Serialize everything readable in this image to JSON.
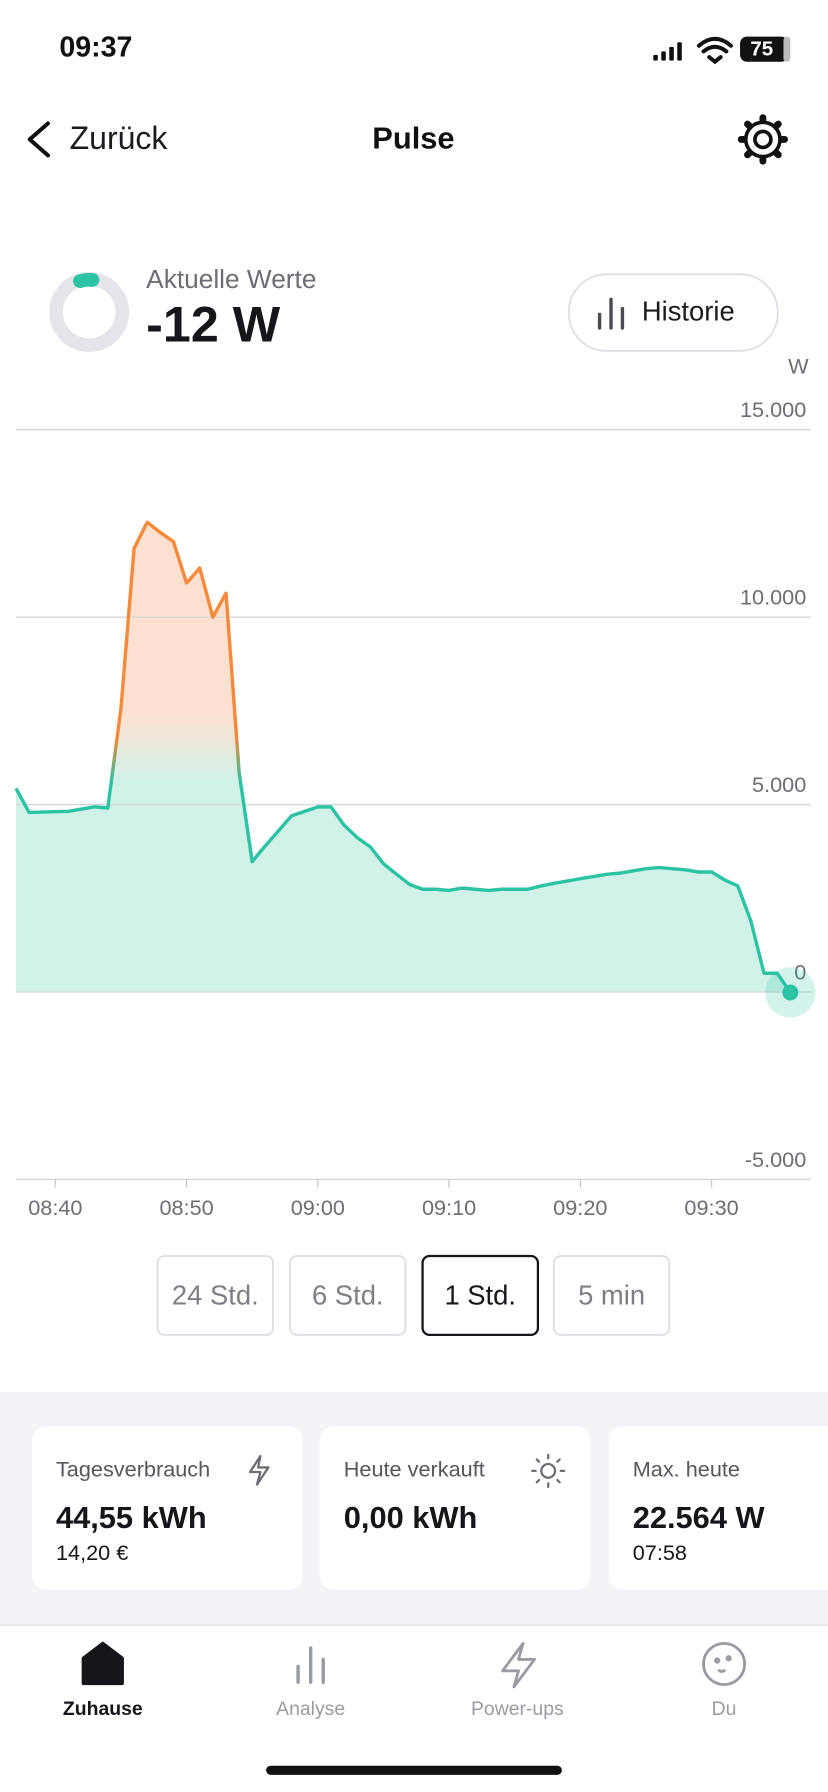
{
  "status_bar": {
    "time": "09:37",
    "battery": "75"
  },
  "nav": {
    "back": "Zurück",
    "title": "Pulse"
  },
  "current": {
    "label": "Aktuelle Werte",
    "value": "-12 W",
    "history_button": "Historie"
  },
  "chart_data": {
    "type": "line",
    "y_unit": "W",
    "color": "#2cc3a4",
    "peak_color": "#f58a3d",
    "x": [
      "08:37",
      "08:38",
      "08:41",
      "08:43",
      "08:44",
      "08:45",
      "08:46",
      "08:47",
      "08:48",
      "08:49",
      "08:50",
      "08:51",
      "08:52",
      "08:53",
      "08:54",
      "08:55",
      "08:56",
      "08:57",
      "08:58",
      "08:59",
      "09:00",
      "09:01",
      "09:02",
      "09:03",
      "09:04",
      "09:05",
      "09:06",
      "09:07",
      "09:08",
      "09:09",
      "09:10",
      "09:11",
      "09:12",
      "09:13",
      "09:14",
      "09:15",
      "09:16",
      "09:17",
      "09:18",
      "09:19",
      "09:20",
      "09:21",
      "09:22",
      "09:23",
      "09:24",
      "09:25",
      "09:26",
      "09:27",
      "09:28",
      "09:29",
      "09:30",
      "09:31",
      "09:32",
      "09:33",
      "09:34",
      "09:35",
      "09:36"
    ],
    "values": [
      5430,
      4790,
      4820,
      4940,
      4910,
      7560,
      11830,
      12530,
      12260,
      12010,
      10910,
      11310,
      10000,
      10640,
      5850,
      3480,
      3900,
      4300,
      4700,
      4820,
      4940,
      4940,
      4450,
      4120,
      3870,
      3420,
      3140,
      2870,
      2740,
      2740,
      2710,
      2770,
      2740,
      2710,
      2740,
      2740,
      2740,
      2830,
      2900,
      2960,
      3020,
      3080,
      3140,
      3170,
      3230,
      3290,
      3320,
      3290,
      3260,
      3200,
      3200,
      2990,
      2830,
      1890,
      500,
      500,
      -12
    ],
    "xlim": [
      "08:37",
      "09:36"
    ],
    "xticks": [
      "08:40",
      "08:50",
      "09:00",
      "09:10",
      "09:20",
      "09:30"
    ],
    "ylim": [
      -5000,
      15000
    ],
    "yticks": [
      {
        "value": -5000,
        "label": "-5.000"
      },
      0,
      {
        "value": 5000,
        "label": "5.000"
      },
      {
        "value": 10000,
        "label": "10.000"
      },
      {
        "value": 15000,
        "label": "15.000"
      }
    ],
    "grid": true
  },
  "ranges": [
    {
      "label": "24 Std.",
      "selected": false
    },
    {
      "label": "6 Std.",
      "selected": false
    },
    {
      "label": "1 Std.",
      "selected": true
    },
    {
      "label": "5 min",
      "selected": false
    }
  ],
  "cards": [
    {
      "title": "Tagesverbrauch",
      "value": "44,55 kWh",
      "sub": "14,20 €"
    },
    {
      "title": "Heute verkauft",
      "value": "0,00 kWh"
    },
    {
      "title": "Max. heute",
      "value": "22.564 W",
      "sub": "07:58"
    }
  ],
  "tabbar": [
    {
      "label": "Zuhause",
      "active": true
    },
    {
      "label": "Analyse",
      "active": false
    },
    {
      "label": "Power-ups",
      "active": false
    },
    {
      "label": "Du",
      "active": false
    }
  ]
}
